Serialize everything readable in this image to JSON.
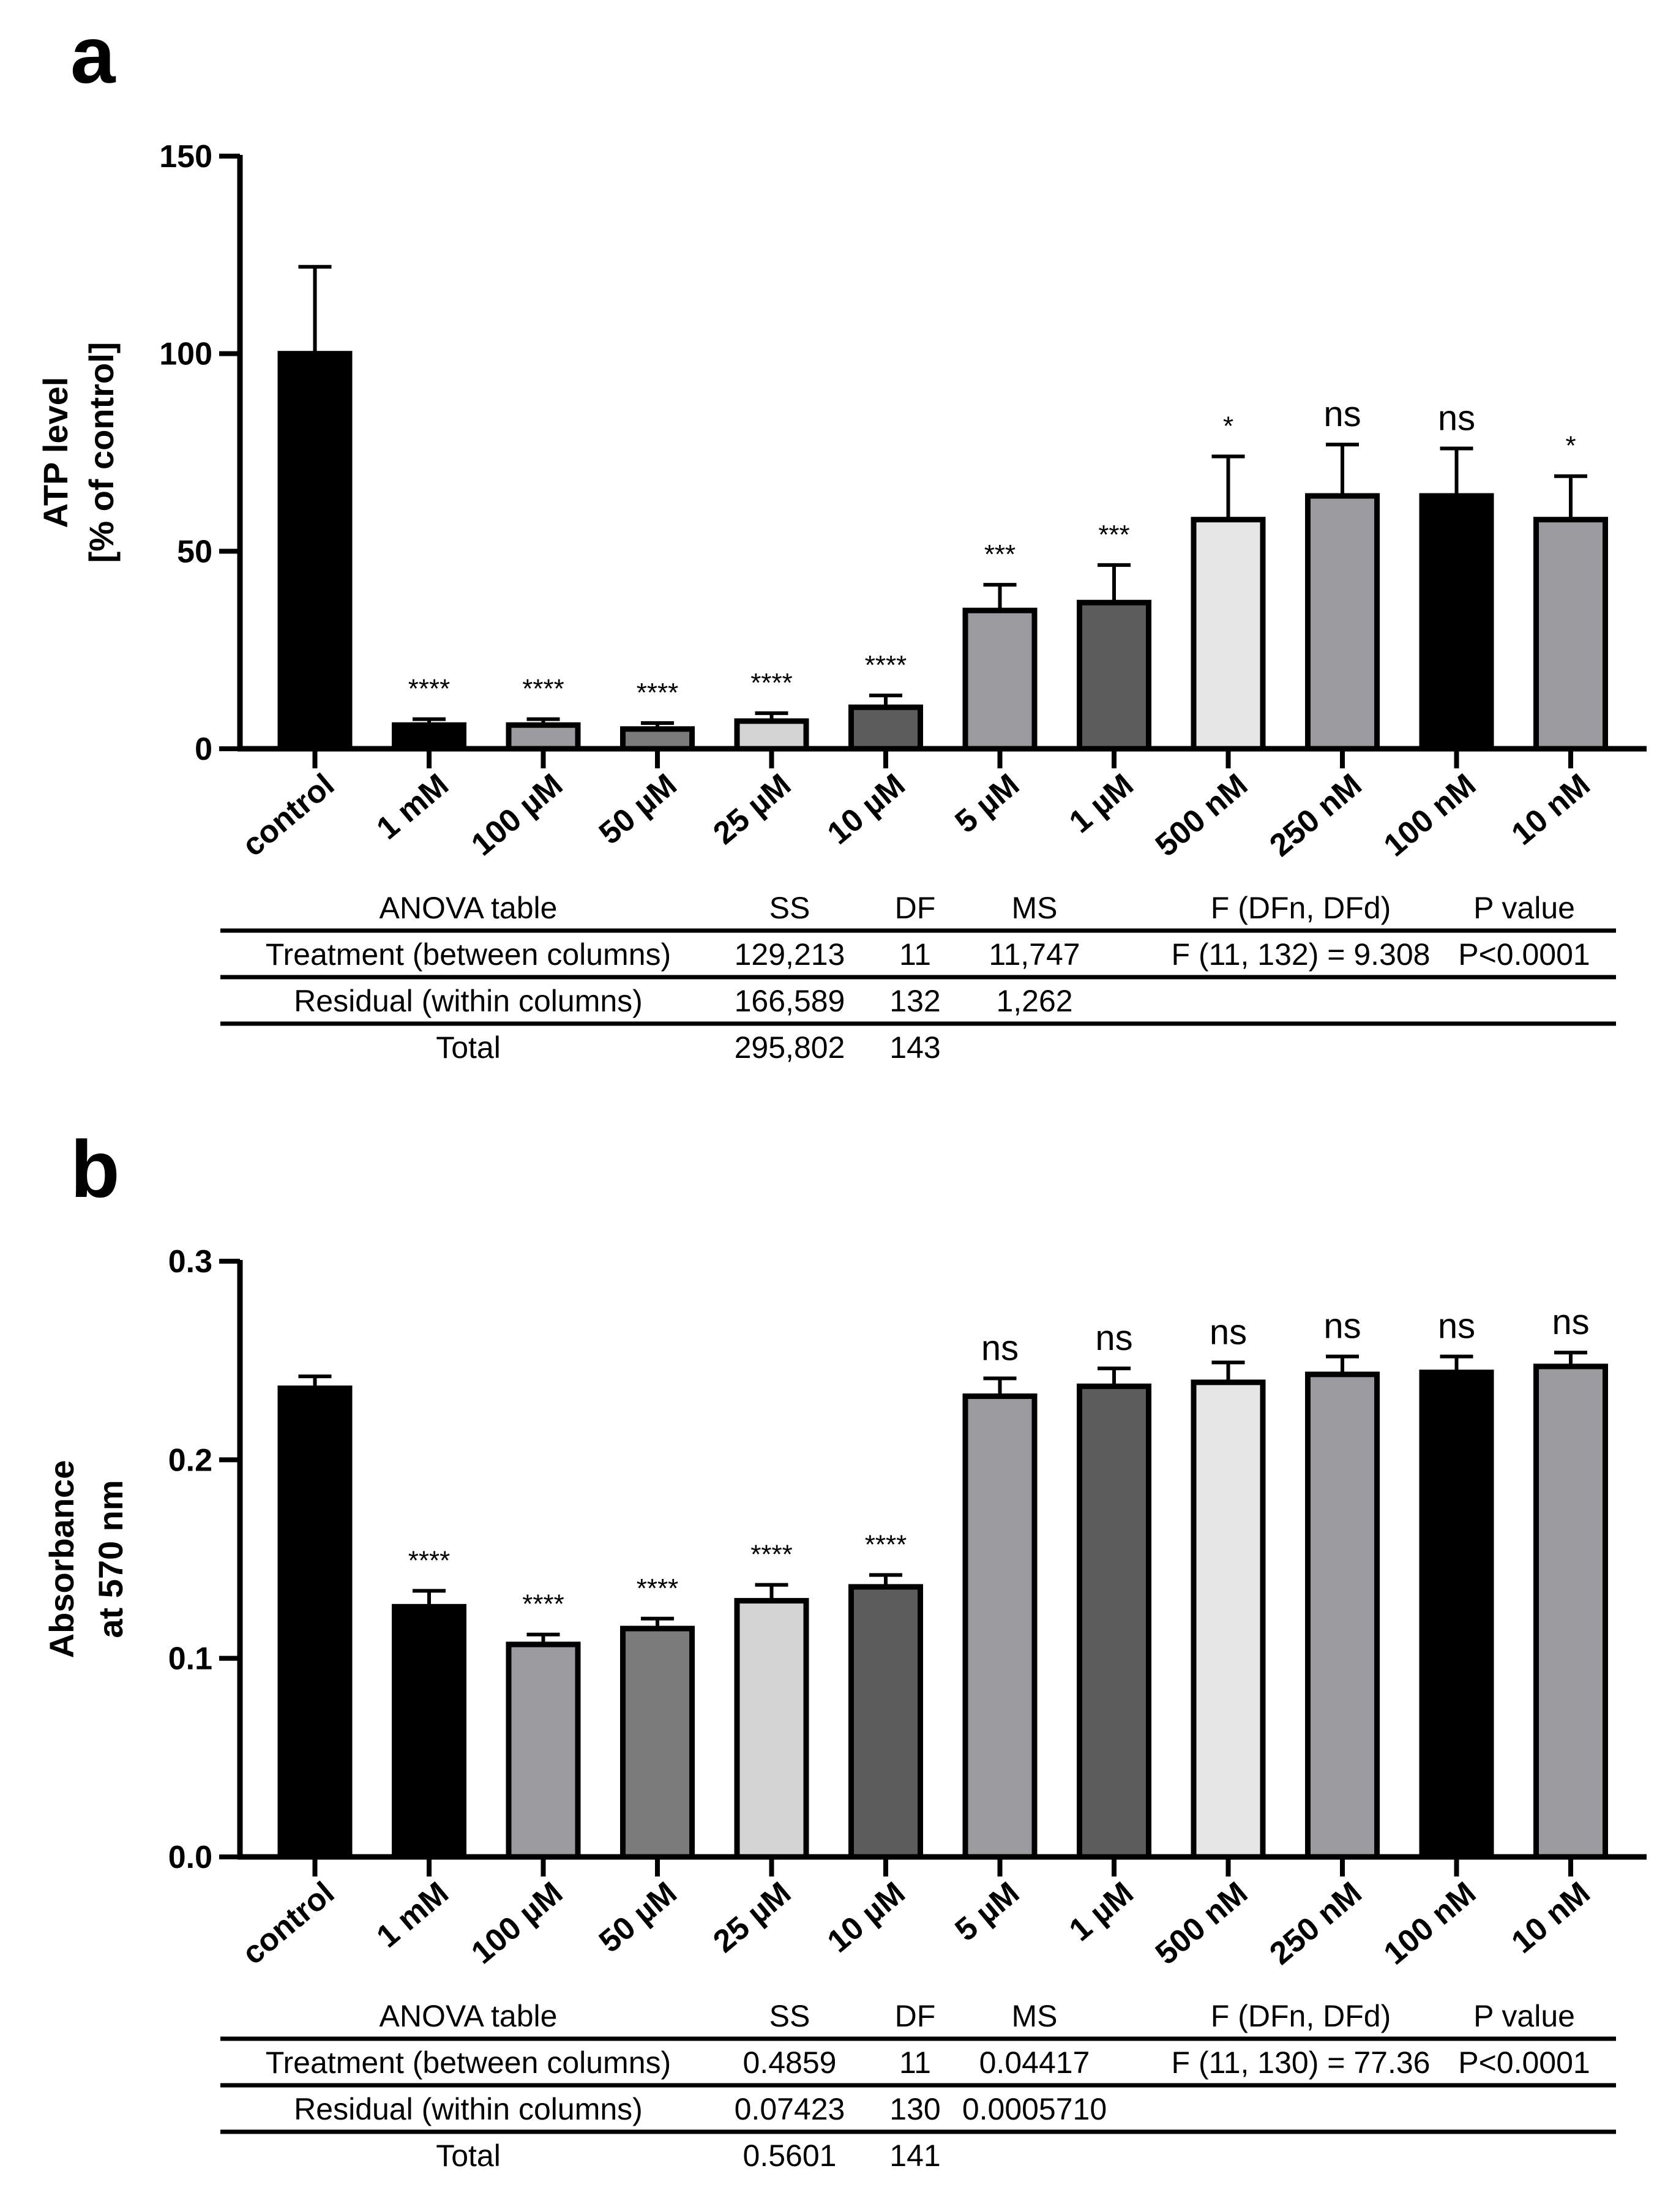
{
  "panels": [
    {
      "letter": "a",
      "chart_data": {
        "type": "bar",
        "title": "",
        "xlabel": "",
        "ylabel": [
          "ATP level",
          "[% of control]"
        ],
        "ylim": [
          0,
          150
        ],
        "yticks": [
          0,
          50,
          100,
          150
        ],
        "categories": [
          "control",
          "1 mM",
          "100 µM",
          "50 µM",
          "25 µM",
          "10 µM",
          "5 µM",
          "1 µM",
          "500 nM",
          "250 nM",
          "100 nM",
          "10 nM"
        ],
        "values": [
          100,
          6,
          6,
          5,
          7,
          10.5,
          35,
          37,
          58,
          64,
          64,
          58
        ],
        "errors": [
          22,
          1.5,
          1.5,
          1.5,
          2,
          3,
          6.5,
          9.5,
          16,
          13,
          12,
          11
        ],
        "bar_colors": [
          "#000000",
          "#000000",
          "#9b9b9f",
          "#7b7b7b",
          "#d4d4d4",
          "#5c5c5c",
          "#9b9b9f",
          "#5c5c5c",
          "#e6e6e6",
          "#9b9b9f",
          "#000000",
          "#9b9b9f"
        ],
        "significance": [
          "",
          "****",
          "****",
          "****",
          "****",
          "****",
          "***",
          "***",
          "*",
          "ns",
          "ns",
          "*"
        ]
      },
      "anova": {
        "headers": [
          "ANOVA table",
          "SS",
          "DF",
          "MS",
          "F (DFn, DFd)",
          "P value"
        ],
        "rows": [
          [
            "Treatment (between columns)",
            "129,213",
            "11",
            "11,747",
            "F (11, 132) = 9.308",
            "P<0.0001"
          ],
          [
            "Residual (within columns)",
            "166,589",
            "132",
            "1,262",
            "",
            ""
          ],
          [
            "Total",
            "295,802",
            "143",
            "",
            "",
            ""
          ]
        ]
      }
    },
    {
      "letter": "b",
      "chart_data": {
        "type": "bar",
        "title": "",
        "xlabel": "",
        "ylabel": [
          "Absorbance",
          "at 570 nm"
        ],
        "ylim": [
          0,
          0.3
        ],
        "yticks": [
          "0.0",
          "0.1",
          "0.2",
          "0.3"
        ],
        "categories": [
          "control",
          "1 mM",
          "100 µM",
          "50 µM",
          "25 µM",
          "10 µM",
          "5 µM",
          "1 µM",
          "500 nM",
          "250 nM",
          "100 nM",
          "10 nM"
        ],
        "values": [
          0.236,
          0.126,
          0.107,
          0.115,
          0.129,
          0.136,
          0.232,
          0.237,
          0.239,
          0.243,
          0.244,
          0.247
        ],
        "errors": [
          0.006,
          0.008,
          0.005,
          0.005,
          0.008,
          0.006,
          0.009,
          0.009,
          0.01,
          0.009,
          0.008,
          0.007
        ],
        "bar_colors": [
          "#000000",
          "#000000",
          "#9b9b9f",
          "#7b7b7b",
          "#d4d4d4",
          "#5c5c5c",
          "#9b9b9f",
          "#5c5c5c",
          "#e6e6e6",
          "#9b9b9f",
          "#000000",
          "#9b9b9f"
        ],
        "significance": [
          "",
          "****",
          "****",
          "****",
          "****",
          "****",
          "ns",
          "ns",
          "ns",
          "ns",
          "ns",
          "ns"
        ]
      },
      "anova": {
        "headers": [
          "ANOVA table",
          "SS",
          "DF",
          "MS",
          "F (DFn, DFd)",
          "P value"
        ],
        "rows": [
          [
            "Treatment (between columns)",
            "0.4859",
            "11",
            "0.04417",
            "F (11, 130) = 77.36",
            "P<0.0001"
          ],
          [
            "Residual (within columns)",
            "0.07423",
            "130",
            "0.0005710",
            "",
            ""
          ],
          [
            "Total",
            "0.5601",
            "141",
            "",
            "",
            ""
          ]
        ]
      }
    }
  ]
}
